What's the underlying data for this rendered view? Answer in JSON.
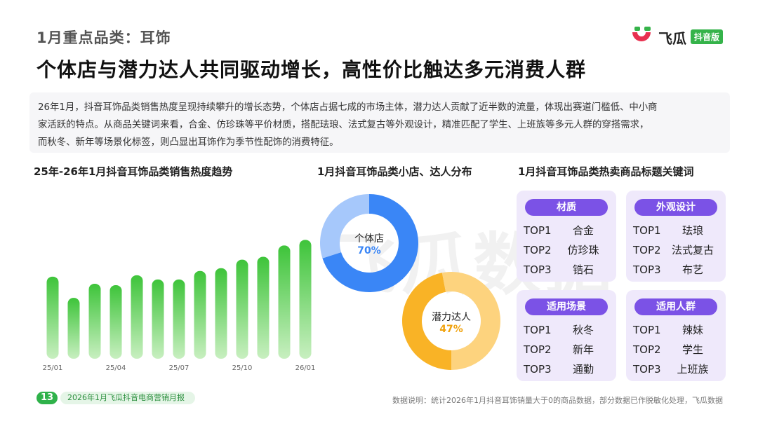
{
  "header": {
    "subtitle": "1月重点品类：耳饰",
    "headline": "个体店与潜力达人共同驱动增长，高性价比触达多元消费人群",
    "logo_text": "飞瓜",
    "logo_badge": "抖音版"
  },
  "summary": {
    "line1": "26年1月，抖音耳饰品类销售热度呈现持续攀升的增长态势，个体店占据七成的市场主体，潜力达人贡献了近半数的流量，体现出赛道门槛低、中小商",
    "line2": "家活跃的特点。从商品关键词来看，合金、仿珍珠等平价材质，搭配珐琅、法式复古等外观设计，精准匹配了学生、上班族等多元人群的穿搭需求，",
    "line3": "而秋冬、新年等场景化标签，则凸显出耳饰作为季节性配饰的消费特征。"
  },
  "sections": {
    "trend_title": "25年-26年1月抖音耳饰品类销售热度趋势",
    "dist_title": "1月抖音耳饰品类小店、达人分布",
    "kw_title": "1月抖音耳饰品类热卖商品标题关键词"
  },
  "watermark": "飞瓜数据",
  "chart_data": [
    {
      "type": "bar",
      "title": "25年-26年1月抖音耳饰品类销售热度趋势",
      "categories": [
        "25/01",
        "25/02",
        "25/03",
        "25/04",
        "25/05",
        "25/06",
        "25/07",
        "25/08",
        "25/09",
        "25/10",
        "25/11",
        "25/12",
        "26/01"
      ],
      "tick_labels": [
        "25/01",
        "",
        "",
        "25/04",
        "",
        "",
        "25/07",
        "",
        "",
        "25/10",
        "",
        "",
        "26/01"
      ],
      "values": [
        58,
        43,
        53,
        52,
        59,
        56,
        56,
        62,
        64,
        70,
        72,
        80,
        84
      ],
      "ylim": [
        0,
        100
      ],
      "grid": false,
      "colors": {
        "top": "#3ec43a",
        "bottom": "#c8efc0"
      }
    },
    {
      "type": "pie",
      "donut": true,
      "center_label": "个体店",
      "center_value": "70%",
      "values": [
        70,
        30
      ],
      "colors": [
        "#3a86f6",
        "#a6c8fb"
      ]
    },
    {
      "type": "pie",
      "donut": true,
      "center_label": "潜力达人",
      "center_value": "47%",
      "values": [
        47,
        53
      ],
      "colors": [
        "#f9b326",
        "#fdd37e"
      ]
    }
  ],
  "keywords": [
    {
      "label": "材质",
      "items": [
        {
          "rank": "TOP1",
          "word": "合金"
        },
        {
          "rank": "TOP2",
          "word": "仿珍珠"
        },
        {
          "rank": "TOP3",
          "word": "锆石"
        }
      ]
    },
    {
      "label": "外观设计",
      "items": [
        {
          "rank": "TOP1",
          "word": "珐琅"
        },
        {
          "rank": "TOP2",
          "word": "法式复古"
        },
        {
          "rank": "TOP3",
          "word": "布艺"
        }
      ]
    },
    {
      "label": "适用场景",
      "items": [
        {
          "rank": "TOP1",
          "word": "秋冬"
        },
        {
          "rank": "TOP2",
          "word": "新年"
        },
        {
          "rank": "TOP3",
          "word": "通勤"
        }
      ]
    },
    {
      "label": "适用人群",
      "items": [
        {
          "rank": "TOP1",
          "word": "辣妹"
        },
        {
          "rank": "TOP2",
          "word": "学生"
        },
        {
          "rank": "TOP3",
          "word": "上班族"
        }
      ]
    }
  ],
  "footer": {
    "page_number": "13",
    "report_name": "2026年1月飞瓜抖音电商营销月报",
    "note": "数据说明：统计2026年1月抖音耳饰销量大于0的商品数据，部分数据已作脱敏化处理，飞瓜数据"
  },
  "colors": {
    "accent_green": "#35b34a",
    "accent_purple": "#7b52e6",
    "card_bg": "#efe9fb",
    "blue": "#3a86f6",
    "orange": "#f9b326"
  }
}
